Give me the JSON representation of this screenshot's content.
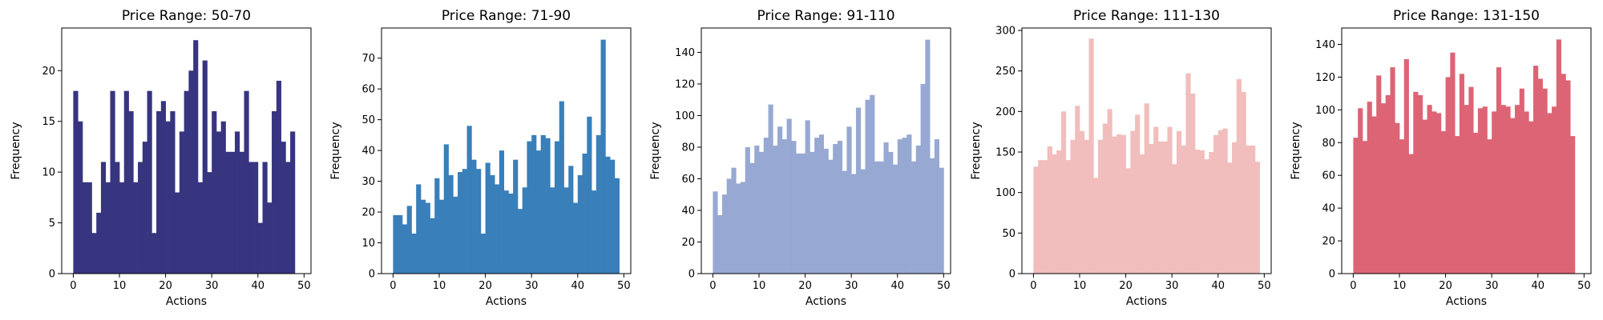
{
  "chart_data": [
    {
      "type": "bar",
      "title": "Price Range: 50-70",
      "xlabel": "Actions",
      "ylabel": "Frequency",
      "color": "#373580",
      "xlim": [
        -2.5,
        51.5
      ],
      "ylim": [
        0,
        24.2
      ],
      "xticks": [
        0,
        10,
        20,
        30,
        40,
        50
      ],
      "yticks": [
        0,
        5,
        10,
        15,
        20
      ],
      "x": [
        0,
        1,
        2,
        3,
        4,
        5,
        6,
        7,
        8,
        9,
        10,
        11,
        12,
        13,
        14,
        15,
        16,
        17,
        18,
        19,
        20,
        21,
        22,
        23,
        24,
        25,
        26,
        27,
        28,
        29,
        30,
        31,
        32,
        33,
        34,
        35,
        36,
        37,
        38,
        39,
        40,
        41,
        42,
        43,
        44,
        45,
        46,
        47,
        48,
        49
      ],
      "values": [
        18,
        15,
        9,
        9,
        4,
        6,
        11,
        9,
        18,
        11,
        9,
        18,
        16,
        9,
        11,
        13,
        18,
        4,
        16,
        17,
        15,
        16,
        8,
        14,
        18,
        20,
        23,
        9,
        21,
        10,
        16,
        14,
        15,
        12,
        12,
        14,
        12,
        18,
        11,
        11,
        5,
        11,
        7,
        16,
        19,
        13,
        11,
        14,
        0,
        0
      ]
    },
    {
      "type": "bar",
      "title": "Price Range: 71-90",
      "xlabel": "Actions",
      "ylabel": "Frequency",
      "color": "#397fba",
      "xlim": [
        -2.5,
        51.5
      ],
      "ylim": [
        0,
        79.8
      ],
      "xticks": [
        0,
        10,
        20,
        30,
        40,
        50
      ],
      "yticks": [
        0,
        10,
        20,
        30,
        40,
        50,
        60,
        70
      ],
      "x": [
        0,
        1,
        2,
        3,
        4,
        5,
        6,
        7,
        8,
        9,
        10,
        11,
        12,
        13,
        14,
        15,
        16,
        17,
        18,
        19,
        20,
        21,
        22,
        23,
        24,
        25,
        26,
        27,
        28,
        29,
        30,
        31,
        32,
        33,
        34,
        35,
        36,
        37,
        38,
        39,
        40,
        41,
        42,
        43,
        44,
        45,
        46,
        47,
        48,
        49
      ],
      "values": [
        19,
        19,
        16,
        22,
        13,
        29,
        24,
        23,
        18,
        31,
        24,
        42,
        32,
        25,
        33,
        34,
        48,
        37,
        34,
        13,
        36,
        32,
        29,
        40,
        27,
        26,
        37,
        21,
        28,
        43,
        45,
        40,
        45,
        44,
        28,
        43,
        56,
        28,
        35,
        23,
        32,
        39,
        51,
        27,
        45,
        76,
        38,
        37,
        31,
        0
      ]
    },
    {
      "type": "bar",
      "title": "Price Range: 91-110",
      "xlabel": "Actions",
      "ylabel": "Frequency",
      "color": "#97a9d2",
      "xlim": [
        -2.5,
        51.5
      ],
      "ylim": [
        0,
        155.4
      ],
      "xticks": [
        0,
        10,
        20,
        30,
        40,
        50
      ],
      "yticks": [
        0,
        20,
        40,
        60,
        80,
        100,
        120,
        140
      ],
      "x": [
        0,
        1,
        2,
        3,
        4,
        5,
        6,
        7,
        8,
        9,
        10,
        11,
        12,
        13,
        14,
        15,
        16,
        17,
        18,
        19,
        20,
        21,
        22,
        23,
        24,
        25,
        26,
        27,
        28,
        29,
        30,
        31,
        32,
        33,
        34,
        35,
        36,
        37,
        38,
        39,
        40,
        41,
        42,
        43,
        44,
        45,
        46,
        47,
        48,
        49
      ],
      "values": [
        52,
        37,
        50,
        60,
        67,
        57,
        58,
        80,
        70,
        81,
        77,
        86,
        107,
        81,
        93,
        85,
        98,
        84,
        76,
        76,
        97,
        77,
        86,
        88,
        79,
        72,
        82,
        84,
        65,
        93,
        63,
        105,
        66,
        110,
        113,
        71,
        71,
        83,
        77,
        69,
        85,
        86,
        88,
        71,
        81,
        120,
        148,
        73,
        85,
        67
      ]
    },
    {
      "type": "bar",
      "title": "Price Range: 111-130",
      "xlabel": "Actions",
      "ylabel": "Frequency",
      "color": "#f1bdbd",
      "xlim": [
        -2.5,
        51.5
      ],
      "ylim": [
        0,
        303
      ],
      "xticks": [
        0,
        10,
        20,
        30,
        40,
        50
      ],
      "yticks": [
        0,
        50,
        100,
        150,
        200,
        250,
        300
      ],
      "x": [
        0,
        1,
        2,
        3,
        4,
        5,
        6,
        7,
        8,
        9,
        10,
        11,
        12,
        13,
        14,
        15,
        16,
        17,
        18,
        19,
        20,
        21,
        22,
        23,
        24,
        25,
        26,
        27,
        28,
        29,
        30,
        31,
        32,
        33,
        34,
        35,
        36,
        37,
        38,
        39,
        40,
        41,
        42,
        43,
        44,
        45,
        46,
        47,
        48,
        49
      ],
      "values": [
        132,
        140,
        140,
        157,
        147,
        152,
        200,
        140,
        165,
        207,
        176,
        165,
        290,
        118,
        165,
        185,
        203,
        169,
        172,
        171,
        130,
        176,
        196,
        147,
        210,
        160,
        181,
        163,
        163,
        181,
        135,
        176,
        158,
        247,
        222,
        153,
        152,
        141,
        150,
        171,
        177,
        179,
        137,
        162,
        240,
        224,
        158,
        158,
        138,
        0
      ]
    },
    {
      "type": "bar",
      "title": "Price Range: 131-150",
      "xlabel": "Actions",
      "ylabel": "Frequency",
      "color": "#dd6474",
      "xlim": [
        -2.5,
        51.5
      ],
      "ylim": [
        0,
        150
      ],
      "xticks": [
        0,
        10,
        20,
        30,
        40,
        50
      ],
      "yticks": [
        0,
        20,
        40,
        60,
        80,
        100,
        120,
        140
      ],
      "x": [
        0,
        1,
        2,
        3,
        4,
        5,
        6,
        7,
        8,
        9,
        10,
        11,
        12,
        13,
        14,
        15,
        16,
        17,
        18,
        19,
        20,
        21,
        22,
        23,
        24,
        25,
        26,
        27,
        28,
        29,
        30,
        31,
        32,
        33,
        34,
        35,
        36,
        37,
        38,
        39,
        40,
        41,
        42,
        43,
        44,
        45,
        46,
        47,
        48,
        49
      ],
      "values": [
        83,
        101,
        81,
        105,
        96,
        121,
        104,
        109,
        126,
        92,
        82,
        131,
        73,
        111,
        109,
        94,
        103,
        99,
        98,
        87,
        120,
        135,
        84,
        122,
        103,
        114,
        86,
        101,
        102,
        82,
        99,
        126,
        103,
        102,
        95,
        103,
        113,
        99,
        93,
        127,
        119,
        113,
        98,
        102,
        143,
        122,
        118,
        84,
        0,
        0
      ]
    }
  ]
}
